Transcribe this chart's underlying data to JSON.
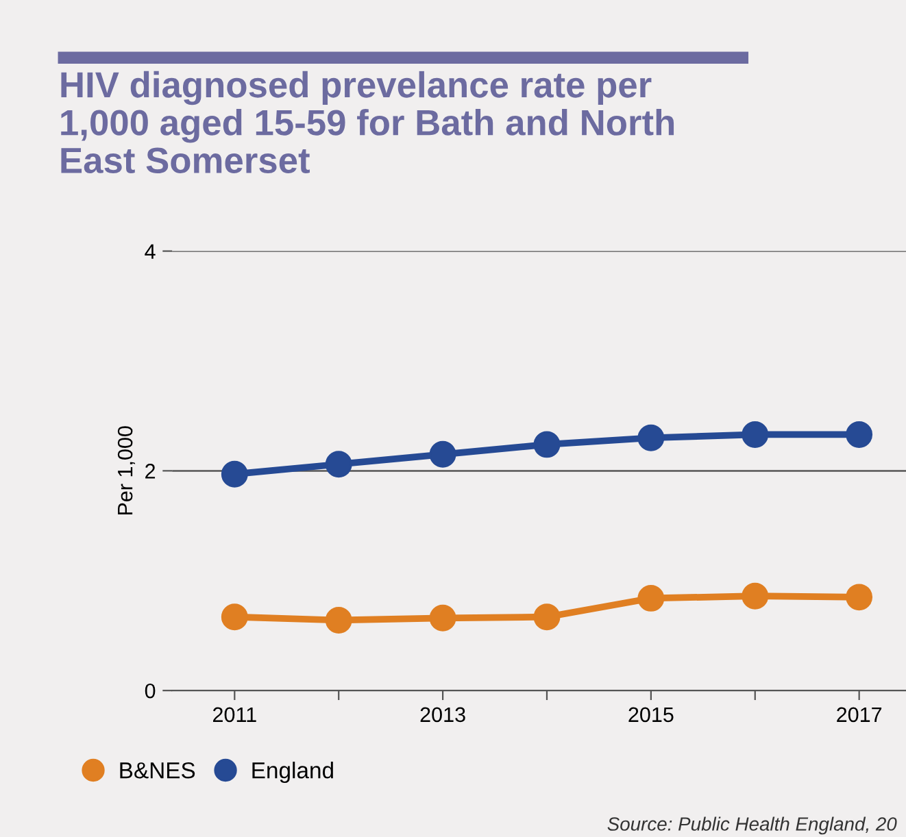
{
  "chart_data": {
    "type": "line",
    "title": "HIV diagnosed prevelance rate per\n1,000 aged 15-59 for Bath and North\nEast Somerset",
    "ylabel": "Per 1,000",
    "x": [
      2011,
      2012,
      2013,
      2014,
      2015,
      2016,
      2017
    ],
    "series": [
      {
        "name": "B&NES",
        "color": "#e07f22",
        "values": [
          0.67,
          0.64,
          0.66,
          0.67,
          0.84,
          0.86,
          0.85
        ]
      },
      {
        "name": "England",
        "color": "#264a94",
        "values": [
          1.97,
          2.06,
          2.15,
          2.24,
          2.3,
          2.33,
          2.33
        ]
      }
    ],
    "xlim": [
      2010.4,
      2017.45
    ],
    "xticks": [
      2011,
      {
        "value": 2012,
        "label": null
      },
      2013,
      {
        "value": 2014,
        "label": null
      },
      2015,
      {
        "value": 2016,
        "label": null
      },
      2017
    ],
    "ylim": [
      0,
      4
    ],
    "yticks": [
      0,
      2,
      4
    ],
    "grid": "y",
    "legend": "bottom left",
    "marker": "circle",
    "line_style": "solid",
    "annotations": [
      "Source: Public Health England, 20"
    ]
  }
}
